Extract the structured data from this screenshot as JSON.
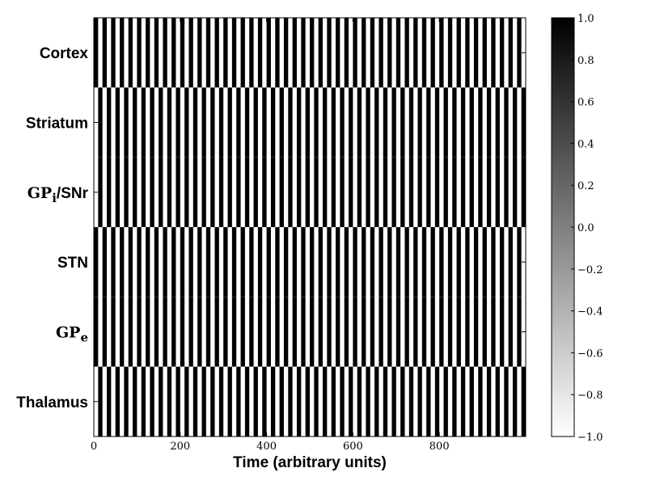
{
  "chart_data": {
    "type": "heatmap",
    "title": "",
    "xlabel": "Time (arbitrary units)",
    "ylabel": "",
    "xlim": [
      0,
      1000
    ],
    "x_ticks": [
      0,
      200,
      400,
      600,
      800
    ],
    "stripe_period": 20,
    "stripe_width": 10,
    "regions": [
      {
        "label": "Cortex",
        "sub": "",
        "rest": "",
        "phase": 0
      },
      {
        "label": "Striatum",
        "sub": "",
        "rest": "",
        "phase": 1
      },
      {
        "label": "GP",
        "sub": "i",
        "rest": "/SNr",
        "phase": 1
      },
      {
        "label": "STN",
        "sub": "",
        "rest": "",
        "phase": 0
      },
      {
        "label": "GP",
        "sub": "e",
        "rest": "",
        "phase": 0
      },
      {
        "label": "Thalamus",
        "sub": "",
        "rest": "",
        "phase": 1
      }
    ],
    "band_rows": [
      1,
      1,
      1,
      1,
      1,
      1
    ],
    "colorbar": {
      "min": -1.0,
      "max": 1.0,
      "ticks": [
        "1.0",
        "0.8",
        "0.6",
        "0.4",
        "0.2",
        "0.0",
        "−0.2",
        "−0.4",
        "−0.6",
        "−0.8",
        "−1.0"
      ],
      "low_color": "#ffffff",
      "high_color": "#000000"
    },
    "value_high": 1.0,
    "value_low": -1.0,
    "grid": false
  }
}
